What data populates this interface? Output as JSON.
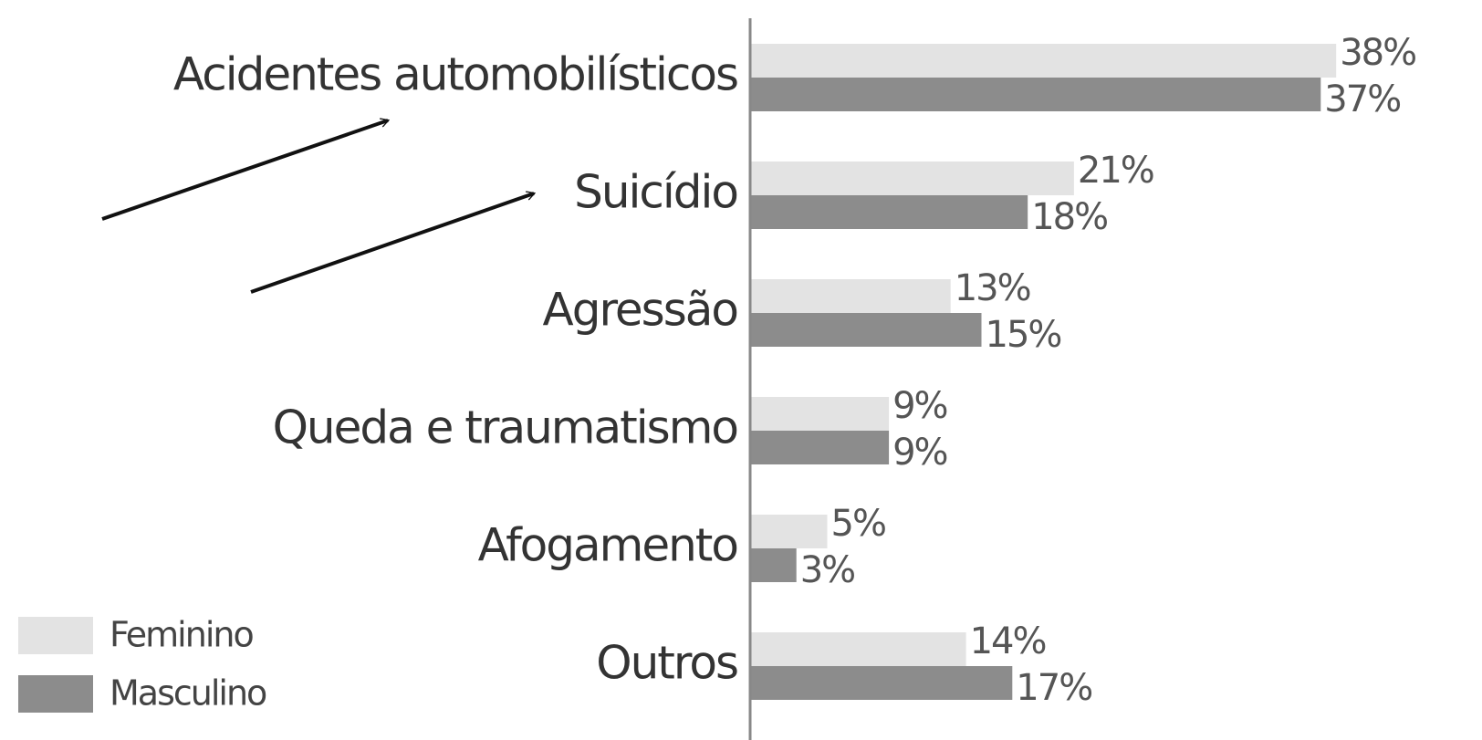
{
  "chart_data": {
    "type": "bar",
    "orientation": "horizontal",
    "categories": [
      "Acidentes automobilísticos",
      "Suicídio",
      "Agressão",
      "Queda e traumatismo",
      "Afogamento",
      "Outros"
    ],
    "series": [
      {
        "name": "Feminino",
        "color": "#e3e3e3",
        "values": [
          38,
          21,
          13,
          9,
          5,
          14
        ],
        "value_labels": [
          "38%",
          "21%",
          "13%",
          "9%",
          "5%",
          "14%"
        ]
      },
      {
        "name": "Masculino",
        "color": "#8c8c8c",
        "values": [
          37,
          18,
          15,
          9,
          3,
          17
        ],
        "value_labels": [
          "37%",
          "18%",
          "15%",
          "9%",
          "3%",
          "17%"
        ]
      }
    ]
  }
}
